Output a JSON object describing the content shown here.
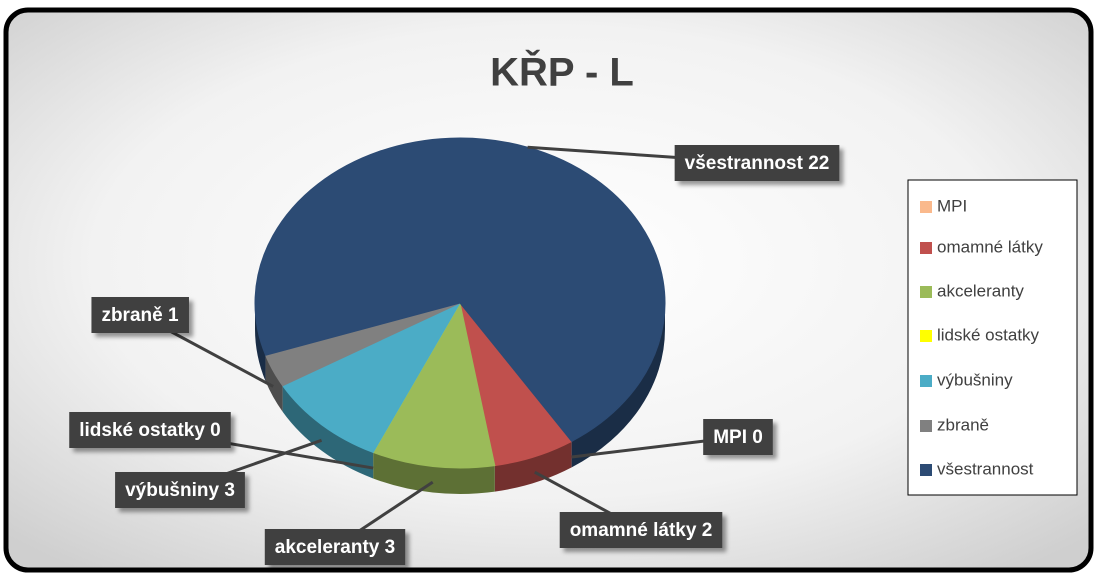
{
  "chart_data": {
    "type": "pie",
    "title": "KŘP - L",
    "categories": [
      "MPI",
      "omamné látky",
      "akceleranty",
      "lidské ostatky",
      "výbušniny",
      "zbraně",
      "všestrannost"
    ],
    "values": [
      0,
      2,
      3,
      0,
      3,
      1,
      22
    ],
    "value_labels": [
      "MPI 0",
      "omamné látky 2",
      "akceleranty 3",
      "lidské ostatky 0",
      "výbušniny 3",
      "zbraně 1",
      "všestrannost 22"
    ],
    "colors": [
      "#fab98c",
      "#c0504d",
      "#9bbb59",
      "#ffff00",
      "#4bacc6",
      "#808080",
      "#2c4b74"
    ],
    "legend": "right"
  }
}
